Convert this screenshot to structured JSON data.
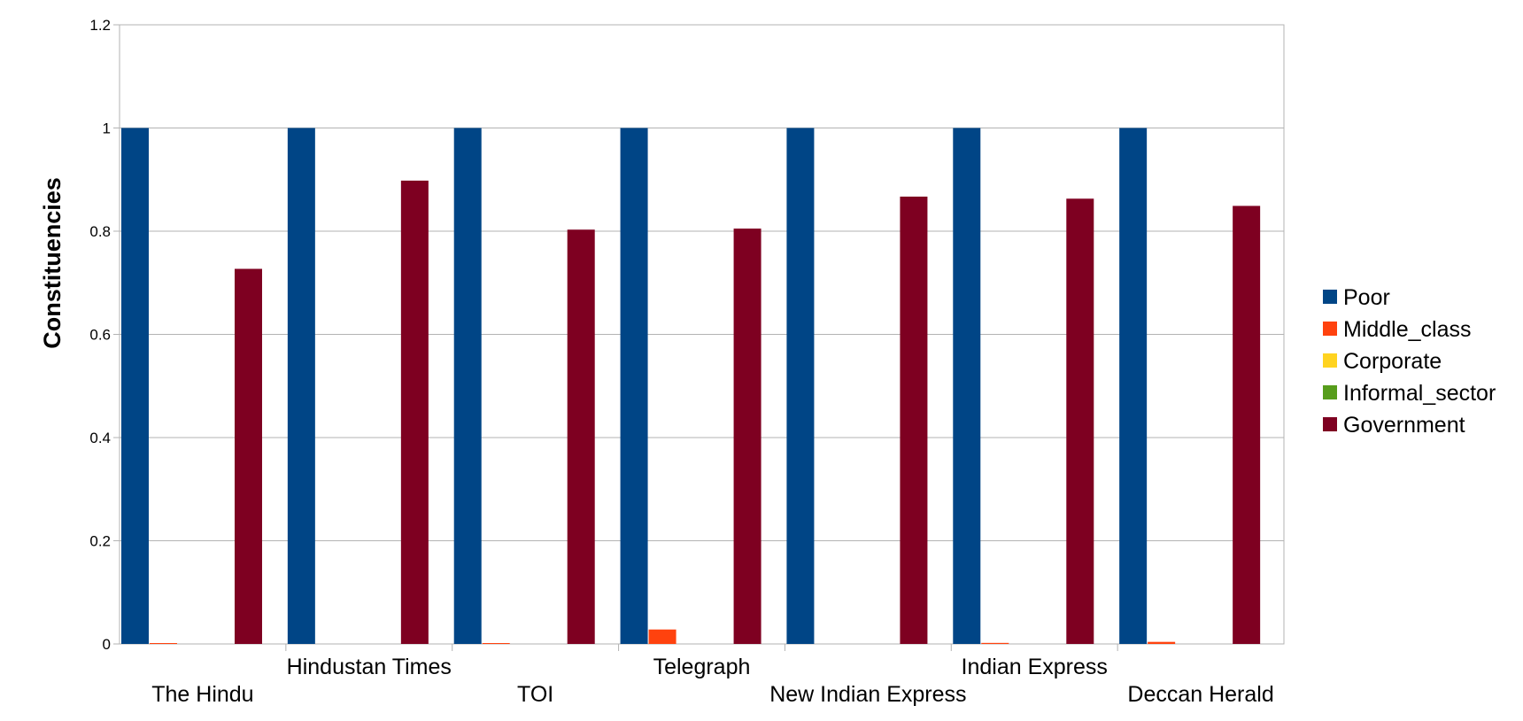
{
  "chart_data": {
    "type": "bar",
    "title": "",
    "xlabel": "",
    "ylabel": "Constituencies",
    "ylim": [
      0,
      1.2
    ],
    "yticks": [
      0,
      0.2,
      0.4,
      0.6,
      0.8,
      1,
      1.2
    ],
    "ytick_labels": [
      "0",
      "0.2",
      "0.4",
      "0.6",
      "0.8",
      "1",
      "1.2"
    ],
    "grid": true,
    "legend_position": "right",
    "categories": [
      "The Hindu",
      "Hindustan Times",
      "TOI",
      "Telegraph",
      "New Indian Express",
      "Indian Express",
      "Deccan Herald"
    ],
    "series": [
      {
        "name": "Poor",
        "color": "#004586",
        "values": [
          1,
          1,
          1,
          1,
          1,
          1,
          1
        ]
      },
      {
        "name": "Middle_class",
        "color": "#ff420e",
        "values": [
          0.001,
          0,
          0.001,
          0.028,
          0,
          0.002,
          0.004
        ]
      },
      {
        "name": "Corporate",
        "color": "#ffd320",
        "values": [
          0,
          0,
          0,
          0,
          0,
          0,
          0
        ]
      },
      {
        "name": "Informal_sector",
        "color": "#579d1c",
        "values": [
          0,
          0,
          0,
          0,
          0,
          0,
          0
        ]
      },
      {
        "name": "Government",
        "color": "#7e0021",
        "values": [
          0.727,
          0.898,
          0.803,
          0.805,
          0.867,
          0.863,
          0.849
        ]
      }
    ]
  }
}
